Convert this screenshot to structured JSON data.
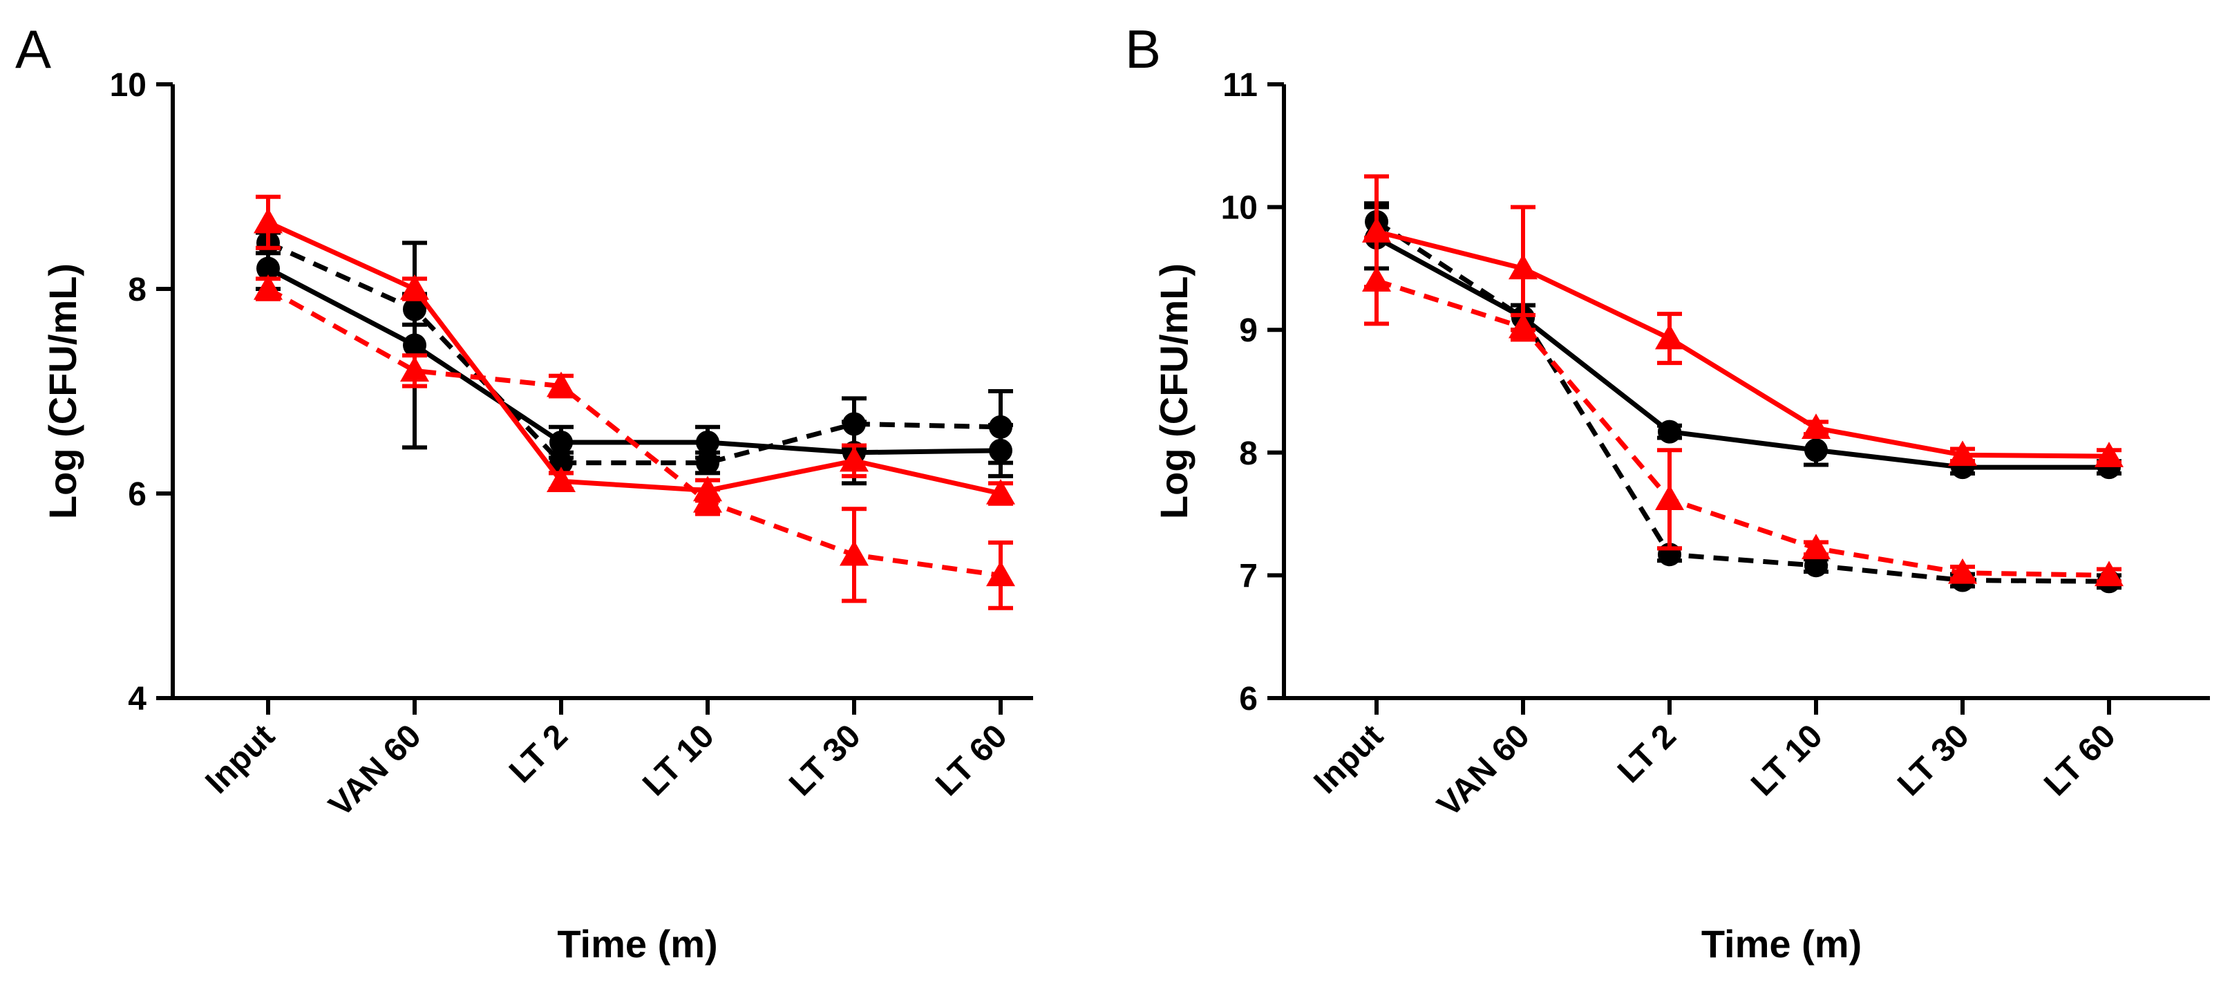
{
  "chart_data": [
    {
      "panel": "A",
      "type": "line",
      "xlabel": "Time (m)",
      "ylabel": "Log (CFU/mL)",
      "ylim": [
        4,
        10
      ],
      "yticks": [
        4,
        6,
        8,
        10
      ],
      "categories": [
        "Input",
        "VAN 60",
        "LT 2",
        "LT 10",
        "LT 30",
        "LT 60"
      ],
      "series": [
        {
          "name": "black-solid",
          "color": "#000000",
          "dash": false,
          "marker": "circle",
          "values": [
            8.2,
            7.45,
            6.5,
            6.5,
            6.4,
            6.42
          ],
          "err": [
            0.2,
            1.0,
            0.15,
            0.15,
            0.3,
            0.25
          ]
        },
        {
          "name": "black-dashed",
          "color": "#000000",
          "dash": true,
          "marker": "circle",
          "values": [
            8.45,
            7.8,
            6.3,
            6.3,
            6.68,
            6.65
          ],
          "err": [
            0.1,
            0.15,
            0.1,
            0.1,
            0.25,
            0.35
          ]
        },
        {
          "name": "red-solid",
          "color": "#ff0000",
          "dash": false,
          "marker": "triangle",
          "values": [
            8.65,
            8.0,
            6.12,
            6.03,
            6.32,
            6.0
          ],
          "err": [
            0.25,
            0.1,
            0.08,
            0.1,
            0.15,
            0.1
          ]
        },
        {
          "name": "red-dashed",
          "color": "#ff0000",
          "dash": true,
          "marker": "triangle",
          "values": [
            8.0,
            7.2,
            7.05,
            5.92,
            5.4,
            5.2
          ],
          "err": [
            0.1,
            0.15,
            0.1,
            0.12,
            0.45,
            0.32
          ]
        }
      ]
    },
    {
      "panel": "B",
      "type": "line",
      "xlabel": "Time (m)",
      "ylabel": "Log (CFU/mL)",
      "ylim": [
        6,
        11
      ],
      "yticks": [
        6,
        7,
        8,
        9,
        10,
        11
      ],
      "categories": [
        "Input",
        "VAN 60",
        "LT 2",
        "LT 10",
        "LT 30",
        "LT 60"
      ],
      "series": [
        {
          "name": "black-solid",
          "color": "#000000",
          "dash": false,
          "marker": "circle",
          "values": [
            9.75,
            9.1,
            8.17,
            8.02,
            7.88,
            7.88
          ],
          "err": [
            0.25,
            0.1,
            0.05,
            0.12,
            0.05,
            0.05
          ]
        },
        {
          "name": "black-dashed",
          "color": "#000000",
          "dash": true,
          "marker": "circle",
          "values": [
            9.88,
            9.1,
            7.17,
            7.08,
            6.96,
            6.95
          ],
          "err": [
            0.15,
            0.1,
            0.05,
            0.05,
            0.05,
            0.05
          ]
        },
        {
          "name": "red-solid",
          "color": "#ff0000",
          "dash": false,
          "marker": "triangle",
          "values": [
            9.8,
            9.5,
            8.93,
            8.2,
            7.98,
            7.97
          ],
          "err": [
            0.45,
            0.5,
            0.2,
            0.05,
            0.05,
            0.05
          ]
        },
        {
          "name": "red-dashed",
          "color": "#ff0000",
          "dash": true,
          "marker": "triangle",
          "values": [
            9.4,
            9.02,
            7.62,
            7.22,
            7.02,
            7.0
          ],
          "err": [
            0.35,
            0.1,
            0.4,
            0.05,
            0.05,
            0.05
          ]
        }
      ]
    }
  ]
}
